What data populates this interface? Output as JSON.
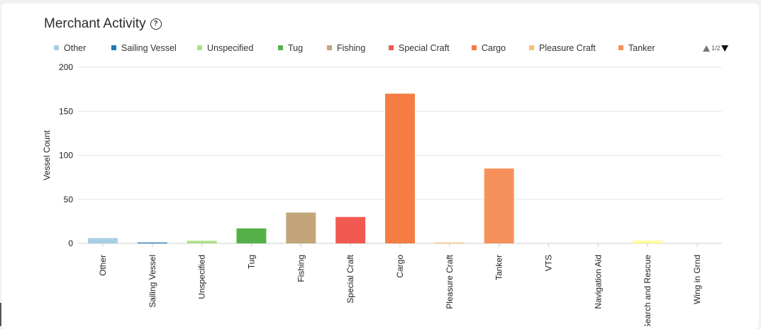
{
  "header": {
    "title": "Merchant Activity",
    "help_icon": "question-circle-icon"
  },
  "legend_pager": {
    "label": "1/2",
    "up_icon": "triangle-up-icon",
    "down_icon": "triangle-down-icon"
  },
  "chart_data": {
    "type": "bar",
    "title": "Merchant Activity",
    "xlabel": "",
    "ylabel": "Vessel Count",
    "ylim": [
      0,
      200
    ],
    "yticks": [
      0,
      50,
      100,
      150,
      200
    ],
    "grid": true,
    "legend_position": "top",
    "categories": [
      "Other",
      "Sailing Vessel",
      "Unspecified",
      "Tug",
      "Fishing",
      "Special Craft",
      "Cargo",
      "Pleasure Craft",
      "Tanker",
      "VTS",
      "Navigation Aid",
      "Search and Rescue",
      "Wing in Grnd"
    ],
    "values": [
      6,
      1,
      3,
      17,
      35,
      30,
      170,
      1,
      85,
      0,
      0,
      3,
      0
    ],
    "colors": [
      "#a6cee3",
      "#1f78b4",
      "#b2df8a",
      "#56b04a",
      "#c4a47a",
      "#f15a50",
      "#f57c42",
      "#fdbf6f",
      "#f7915b",
      "#cab2d6",
      "#6a3d9a",
      "#ffff99",
      "#b15928"
    ],
    "legend_visible": [
      "Other",
      "Sailing Vessel",
      "Unspecified",
      "Tug",
      "Fishing",
      "Special Craft",
      "Cargo",
      "Pleasure Craft",
      "Tanker"
    ]
  }
}
